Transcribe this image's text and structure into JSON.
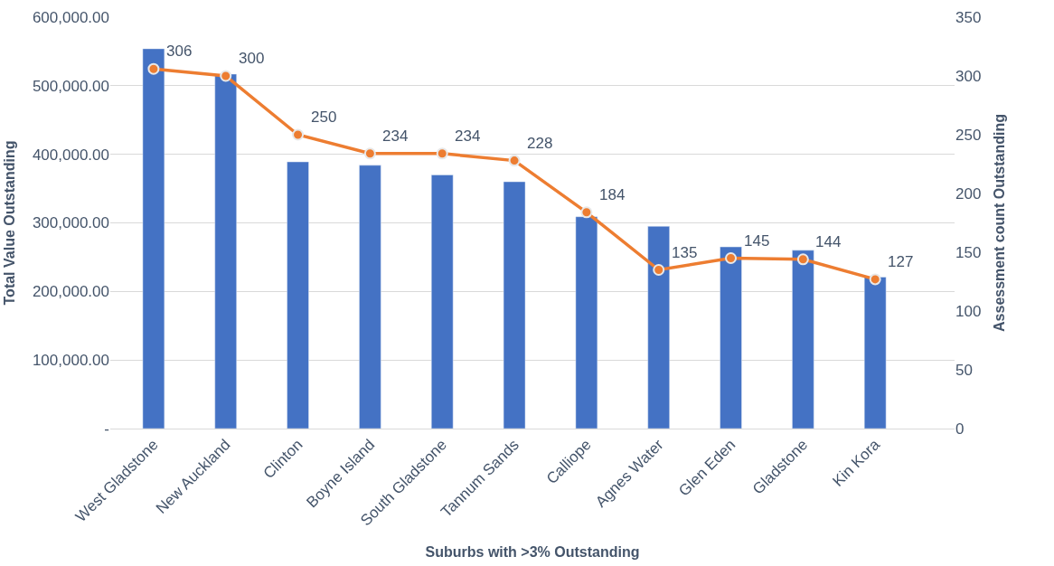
{
  "chart_data": {
    "type": "bar",
    "xlabel": "Suburbs with >3% Outstanding",
    "ylabel": "Total Value Outstanding",
    "y2label": "Assessment count Outstanding",
    "categories": [
      "West Gladstone",
      "New Auckland",
      "Clinton",
      "Boyne Island",
      "South Gladstone",
      "Tannum Sands",
      "Calliope",
      "Agnes Water",
      "Glen Eden",
      "Gladstone",
      "Kin Kora"
    ],
    "series": [
      {
        "color": "#4472c4",
        "values": [
          554000,
          517000,
          389000,
          384000,
          370000,
          360000,
          309000,
          295000,
          265000,
          260000,
          221000
        ]
      },
      {
        "type": "line",
        "axis": "y2",
        "color": "#ed7d31",
        "marker": "circle",
        "values": [
          306,
          300,
          250,
          234,
          234,
          228,
          184,
          135,
          145,
          144,
          127
        ],
        "value_labels": [
          "306",
          "300",
          "250",
          "234",
          "234",
          "228",
          "184",
          "135",
          "145",
          "144",
          "127"
        ]
      }
    ],
    "ylim": [
      0,
      600000
    ],
    "yticks": [
      {
        "value": 0,
        "label": "-"
      },
      {
        "value": 100000,
        "label": "100,000.00"
      },
      {
        "value": 200000,
        "label": "200,000.00"
      },
      {
        "value": 300000,
        "label": "300,000.00"
      },
      {
        "value": 400000,
        "label": "400,000.00"
      },
      {
        "value": 500000,
        "label": "500,000.00"
      },
      {
        "value": 600000,
        "label": "600,000.00"
      }
    ],
    "y2lim": [
      0,
      350
    ],
    "y2ticks": [
      0,
      50,
      100,
      150,
      200,
      250,
      300,
      350
    ],
    "grid": "y"
  }
}
